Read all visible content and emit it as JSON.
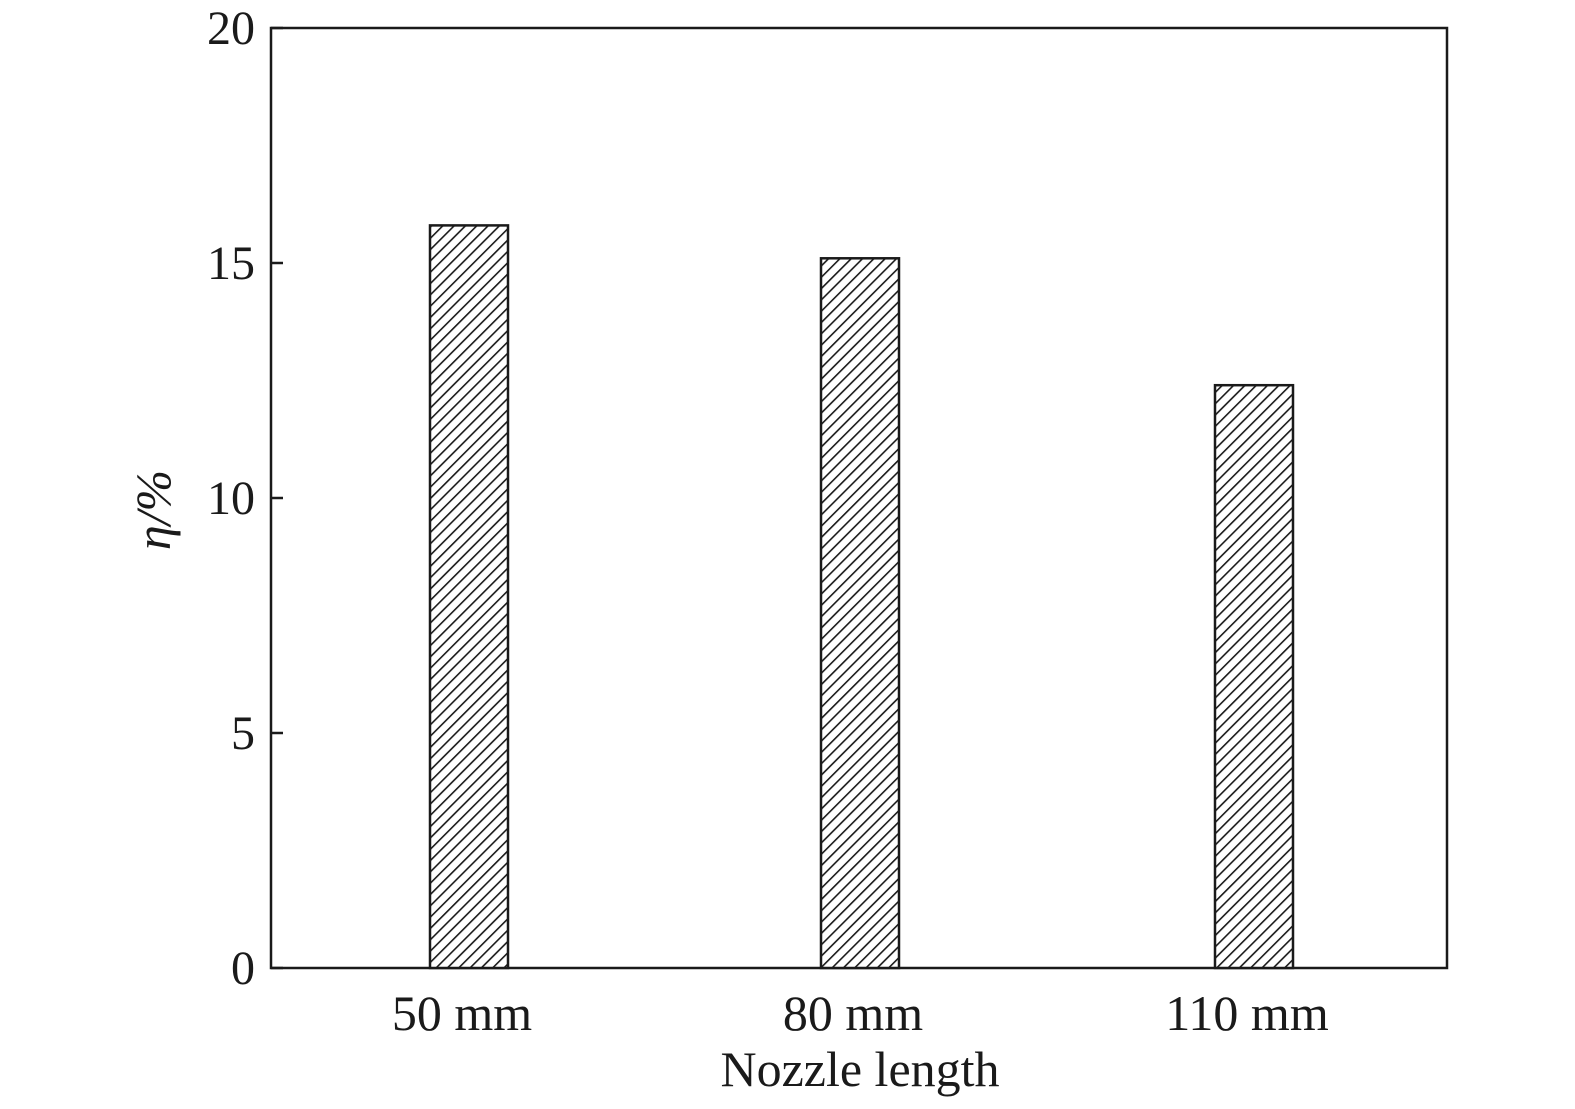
{
  "chart_data": {
    "type": "bar",
    "categories": [
      "50 mm",
      "80 mm",
      "110 mm"
    ],
    "series": [
      {
        "values": [
          15.8,
          15.1,
          12.4
        ]
      }
    ],
    "xlabel": "Nozzle length",
    "ylabel": "η/%",
    "ylim": [
      0,
      20
    ],
    "yticks": [
      "0",
      "5",
      "10",
      "15",
      "20"
    ],
    "grid": false,
    "legend": "none",
    "bar_fill": "hatched",
    "colors": {
      "axis": "#1a1a1a",
      "bar_stroke": "#1a1a1a",
      "hatch": "#1a1a1a",
      "background": "#ffffff"
    }
  }
}
